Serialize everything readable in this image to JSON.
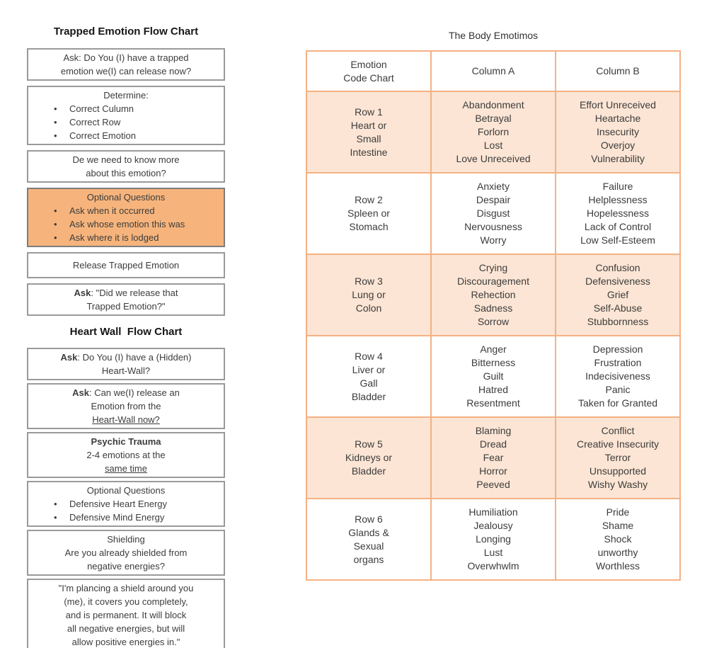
{
  "colors": {
    "accent": "#F6B47C",
    "table_border": "#F4B183",
    "row_shade": "#FCE5D4",
    "box_border": "#9A9A9A"
  },
  "left_panel": {
    "trapped_title": "Trapped Emotion Flow Chart",
    "heart_wall_title": "Heart Wall  Flow Chart",
    "trapped_boxes": [
      {
        "lines": [
          [
            {
              "t": "Ask: Do You (I) have a trapped"
            }
          ],
          [
            {
              "t": "emotion we(I) can release now?"
            }
          ]
        ]
      },
      {
        "lines": [
          [
            {
              "t": "Determine:"
            }
          ]
        ],
        "bullets": [
          "Correct Culumn",
          "Correct Row",
          "Correct Emotion"
        ]
      },
      {
        "lines": [
          [
            {
              "t": "De we need to know more"
            }
          ],
          [
            {
              "t": "about this emotion?"
            }
          ]
        ]
      },
      {
        "fill": "accent",
        "lines": [
          [
            {
              "t": "Optional Questions"
            }
          ]
        ],
        "bullets": [
          "Ask when it occurred",
          "Ask whose emotion this was",
          "Ask where it is lodged"
        ]
      },
      {
        "lines": [
          [
            {
              "t": "Release Trapped Emotion"
            }
          ]
        ]
      },
      {
        "lines": [
          [
            {
              "t": "Ask",
              "b": true
            },
            {
              "t": ": \"Did we release that"
            }
          ],
          [
            {
              "t": "Trapped Emotion?\""
            }
          ]
        ]
      }
    ],
    "heart_wall_boxes": [
      {
        "lines": [
          [
            {
              "t": "Ask",
              "b": true
            },
            {
              "t": ": Do You (I) have a (Hidden)"
            }
          ],
          [
            {
              "t": "Heart-Wall?"
            }
          ]
        ]
      },
      {
        "lines": [
          [
            {
              "t": "Ask",
              "b": true
            },
            {
              "t": ": Can we(I) release an"
            }
          ],
          [
            {
              "t": "Emotion from the"
            }
          ],
          [
            {
              "t": "Heart-Wall now?",
              "u": true
            }
          ]
        ]
      },
      {
        "lines": [
          [
            {
              "t": "Psychic Trauma",
              "b": true
            }
          ],
          [
            {
              "t": "2-4 emotions at the"
            }
          ],
          [
            {
              "t": "same time",
              "u": true
            }
          ]
        ]
      },
      {
        "lines": [
          [
            {
              "t": "Optional Questions"
            }
          ]
        ],
        "bullets": [
          "Defensive Heart Energy",
          "Defensive Mind Energy"
        ]
      },
      {
        "lines": [
          [
            {
              "t": "Shielding"
            }
          ],
          [
            {
              "t": "Are you already shielded from"
            }
          ],
          [
            {
              "t": "negative energies?"
            }
          ]
        ]
      },
      {
        "lines": [
          [
            {
              "t": "\"I'm plancing a shield around you"
            }
          ],
          [
            {
              "t": "(me), it covers you completely,"
            }
          ],
          [
            {
              "t": "and is permanent. It will block"
            }
          ],
          [
            {
              "t": "all negative energies, but will"
            }
          ],
          [
            {
              "t": "allow positive energies in.\""
            }
          ]
        ]
      }
    ]
  },
  "right_panel": {
    "title": "The Body Emotimos",
    "table": {
      "header": [
        [
          "Emotion",
          "Code Chart"
        ],
        [
          "Column A"
        ],
        [
          "Column B"
        ]
      ],
      "rows": [
        {
          "shaded": true,
          "cells": [
            [
              "Row 1",
              "Heart or",
              "Small",
              "Intestine"
            ],
            [
              "Abandonment",
              "Betrayal",
              "Forlorn",
              "Lost",
              "Love Unreceived"
            ],
            [
              "Effort Unreceived",
              "Heartache",
              "Insecurity",
              "Overjoy",
              "Vulnerability"
            ]
          ]
        },
        {
          "shaded": false,
          "cells": [
            [
              "Row 2",
              "Spleen or",
              "Stomach"
            ],
            [
              "Anxiety",
              "Despair",
              "Disgust",
              "Nervousness",
              "Worry"
            ],
            [
              "Failure",
              "Helplessness",
              "Hopelessness",
              "Lack of Control",
              "Low Self-Esteem"
            ]
          ]
        },
        {
          "shaded": true,
          "cells": [
            [
              "Row 3",
              "Lung or",
              "Colon"
            ],
            [
              "Crying",
              "Discouragement",
              "Rehection",
              "Sadness",
              "Sorrow"
            ],
            [
              "Confusion",
              "Defensiveness",
              "Grief",
              "Self-Abuse",
              "Stubbornness"
            ]
          ]
        },
        {
          "shaded": false,
          "cells": [
            [
              "Row 4",
              "Liver or",
              "Gall",
              "Bladder"
            ],
            [
              "Anger",
              "Bitterness",
              "Guilt",
              "Hatred",
              "Resentment"
            ],
            [
              "Depression",
              "Frustration",
              "Indecisiveness",
              "Panic",
              "Taken for Granted"
            ]
          ]
        },
        {
          "shaded": true,
          "cells": [
            [
              "Row 5",
              "Kidneys or",
              "Bladder"
            ],
            [
              "Blaming",
              "Dread",
              "Fear",
              "Horror",
              "Peeved"
            ],
            [
              "Conflict",
              "Creative Insecurity",
              "Terror",
              "Unsupported",
              "Wishy Washy"
            ]
          ]
        },
        {
          "shaded": false,
          "cells": [
            [
              "Row 6",
              "Glands &",
              "Sexual",
              "organs"
            ],
            [
              "Humiliation",
              "Jealousy",
              "Longing",
              "Lust",
              "Overwhwlm"
            ],
            [
              "Pride",
              "Shame",
              "Shock",
              "unworthy",
              "Worthless"
            ]
          ]
        }
      ]
    }
  }
}
